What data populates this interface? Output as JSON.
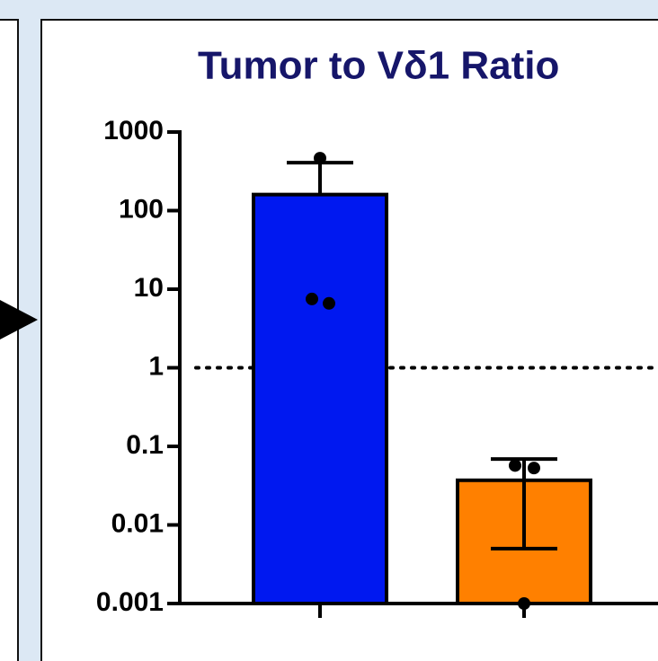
{
  "chart_data": {
    "type": "bar",
    "title": "Tumor to Vδ1 Ratio",
    "categories": [
      null,
      null
    ],
    "colors": [
      "#0018f0",
      "#ff8000"
    ],
    "values": [
      160,
      0.037
    ],
    "errors": [
      247,
      0.032
    ],
    "points": [
      [
        465,
        7.5,
        6.6
      ],
      [
        0.057,
        0.053,
        0.001
      ]
    ],
    "ylim": [
      0.001,
      1000
    ],
    "yticks": [
      0.001,
      0.01,
      0.1,
      1,
      10,
      100,
      1000
    ],
    "log_scale": true,
    "reference_line": 1
  }
}
